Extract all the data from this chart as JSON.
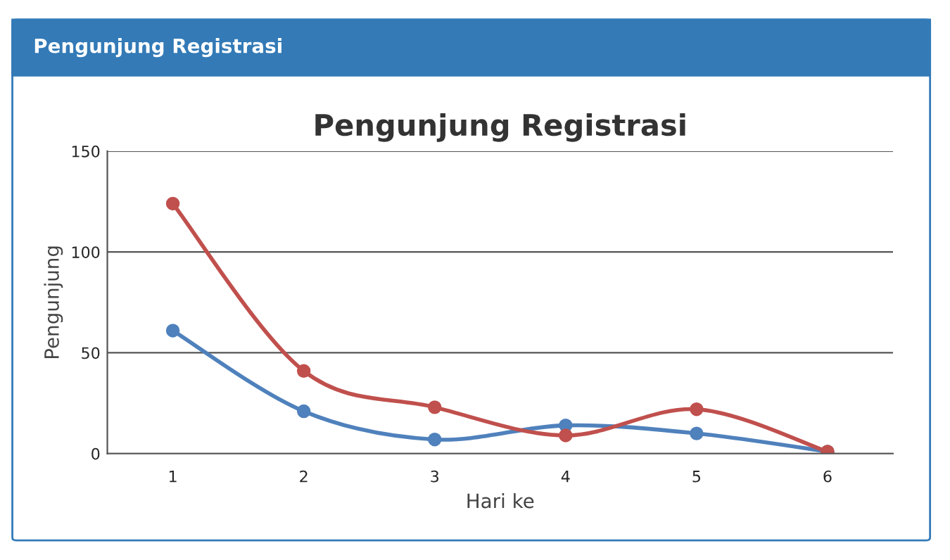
{
  "chart_data": {
    "type": "line",
    "title": "Pengunjung Registrasi",
    "xlabel": "Hari ke",
    "ylabel": "Pengunjung",
    "annotations": [
      "Pengunjung Registrasi"
    ],
    "x": [
      1,
      2,
      3,
      4,
      5,
      6
    ],
    "series": [
      {
        "color": "#4f81bc",
        "values": [
          61,
          21,
          7,
          14,
          10,
          1
        ]
      },
      {
        "color": "#c0504d",
        "values": [
          124,
          41,
          23,
          9,
          22,
          1
        ]
      }
    ],
    "xlim": [
      0.5,
      6.5
    ],
    "xticks": [
      1,
      2,
      3,
      4,
      5,
      6
    ],
    "ylim": [
      0,
      150
    ],
    "yticks": [
      0,
      50,
      100,
      150
    ],
    "grid": "y",
    "legend": false,
    "marker": "circle",
    "line_style": "solid"
  }
}
